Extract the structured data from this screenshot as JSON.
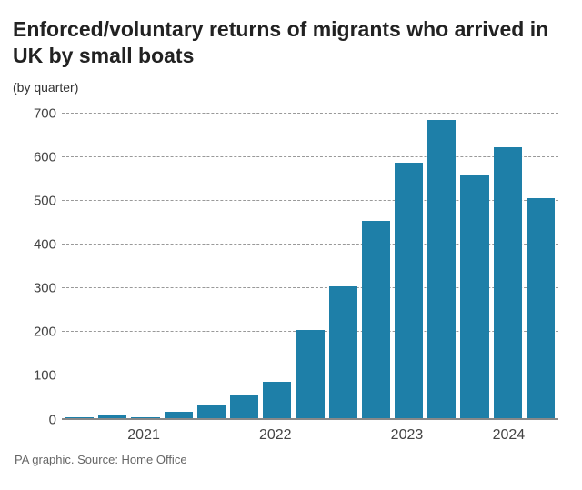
{
  "title": "Enforced/voluntary returns of migrants who arrived in UK by small boats",
  "subtitle": "(by quarter)",
  "source": "PA graphic. Source: Home Office",
  "chart": {
    "type": "bar",
    "ylim": [
      0,
      720
    ],
    "yticks": [
      0,
      100,
      200,
      300,
      400,
      500,
      600,
      700
    ],
    "ytick_labels": [
      "0",
      "100",
      "200",
      "300",
      "400",
      "500",
      "600",
      "700"
    ],
    "bar_color": "#1e7fa8",
    "grid_color": "#999999",
    "grid_style": "dashed",
    "baseline_color": "#888888",
    "background_color": "#ffffff",
    "title_fontsize": 23,
    "title_color": "#222222",
    "label_fontsize": 15,
    "label_color": "#444444",
    "values": [
      6,
      9,
      6,
      17,
      32,
      58,
      86,
      205,
      305,
      455,
      588,
      686,
      560,
      624,
      506
    ],
    "x_year_labels": [
      "2021",
      "2022",
      "2023",
      "2024"
    ],
    "x_year_positions_pct": [
      16.5,
      43,
      69.5,
      90
    ]
  }
}
